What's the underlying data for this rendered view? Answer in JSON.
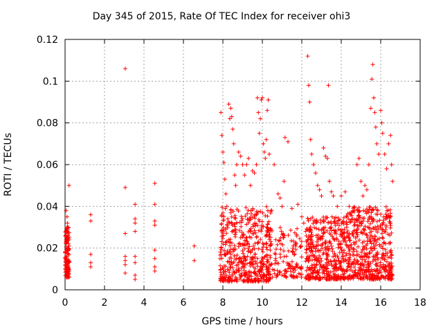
{
  "chart_data": {
    "type": "scatter",
    "title": "Day 345 of 2015, Rate Of TEC Index for receiver ohi3",
    "xlabel": "GPS time / hours",
    "ylabel": "ROTI / TECUs",
    "xlim": [
      0,
      18
    ],
    "ylim": [
      0,
      0.12
    ],
    "x_ticks": [
      "0",
      "2",
      "4",
      "6",
      "8",
      "10",
      "12",
      "14",
      "16",
      "18"
    ],
    "y_ticks": [
      "0",
      "0.02",
      "0.04",
      "0.06",
      "0.08",
      "0.1",
      "0.12"
    ],
    "grid": true,
    "marker": "+",
    "color": "#ff0000",
    "series": [
      {
        "points": [
          [
            0.02,
            0.012
          ],
          [
            0.04,
            0.018
          ],
          [
            0.06,
            0.024
          ],
          [
            0.08,
            0.016
          ],
          [
            0.1,
            0.03
          ],
          [
            0.12,
            0.02
          ],
          [
            0.14,
            0.026
          ],
          [
            0.16,
            0.014
          ],
          [
            0.18,
            0.022
          ],
          [
            0.2,
            0.05
          ],
          [
            0.05,
            0.038
          ],
          [
            0.1,
            0.035
          ],
          [
            0.15,
            0.01
          ],
          [
            0.08,
            0.009
          ],
          [
            0.12,
            0.032
          ],
          [
            0.03,
            0.028
          ],
          [
            1.3,
            0.036
          ],
          [
            1.3,
            0.033
          ],
          [
            1.3,
            0.017
          ],
          [
            1.3,
            0.013
          ],
          [
            1.3,
            0.011
          ],
          [
            3.05,
            0.106
          ],
          [
            3.05,
            0.049
          ],
          [
            3.05,
            0.027
          ],
          [
            3.05,
            0.016
          ],
          [
            3.05,
            0.014
          ],
          [
            3.05,
            0.012
          ],
          [
            3.05,
            0.008
          ],
          [
            3.55,
            0.041
          ],
          [
            3.55,
            0.034
          ],
          [
            3.55,
            0.032
          ],
          [
            3.55,
            0.028
          ],
          [
            3.55,
            0.016
          ],
          [
            3.55,
            0.013
          ],
          [
            3.55,
            0.007
          ],
          [
            3.55,
            0.005
          ],
          [
            4.55,
            0.051
          ],
          [
            4.55,
            0.041
          ],
          [
            4.55,
            0.033
          ],
          [
            4.55,
            0.031
          ],
          [
            4.55,
            0.019
          ],
          [
            4.55,
            0.015
          ],
          [
            4.55,
            0.011
          ],
          [
            4.55,
            0.009
          ],
          [
            6.55,
            0.021
          ],
          [
            6.55,
            0.014
          ],
          [
            7.9,
            0.085
          ],
          [
            7.95,
            0.074
          ],
          [
            8.0,
            0.066
          ],
          [
            8.05,
            0.061
          ],
          [
            8.1,
            0.053
          ],
          [
            8.15,
            0.046
          ],
          [
            8.2,
            0.04
          ],
          [
            8.25,
            0.034
          ],
          [
            8.3,
            0.089
          ],
          [
            8.35,
            0.082
          ],
          [
            8.4,
            0.087
          ],
          [
            8.45,
            0.083
          ],
          [
            8.5,
            0.077
          ],
          [
            8.55,
            0.07
          ],
          [
            8.6,
            0.055
          ],
          [
            8.65,
            0.05
          ],
          [
            8.7,
            0.06
          ],
          [
            8.8,
            0.066
          ],
          [
            8.9,
            0.064
          ],
          [
            9.0,
            0.06
          ],
          [
            9.1,
            0.055
          ],
          [
            9.2,
            0.06
          ],
          [
            9.3,
            0.063
          ],
          [
            9.4,
            0.05
          ],
          [
            9.5,
            0.057
          ],
          [
            9.6,
            0.056
          ],
          [
            9.7,
            0.06
          ],
          [
            9.75,
            0.092
          ],
          [
            9.8,
            0.085
          ],
          [
            9.85,
            0.075
          ],
          [
            9.9,
            0.082
          ],
          [
            9.95,
            0.091
          ],
          [
            10.0,
            0.092
          ],
          [
            10.05,
            0.07
          ],
          [
            10.1,
            0.066
          ],
          [
            10.15,
            0.063
          ],
          [
            10.2,
            0.072
          ],
          [
            10.25,
            0.086
          ],
          [
            10.3,
            0.091
          ],
          [
            10.35,
            0.065
          ],
          [
            10.6,
            0.06
          ],
          [
            10.8,
            0.046
          ],
          [
            10.9,
            0.044
          ],
          [
            11.0,
            0.04
          ],
          [
            11.1,
            0.052
          ],
          [
            11.15,
            0.073
          ],
          [
            11.3,
            0.071
          ],
          [
            11.5,
            0.039
          ],
          [
            11.8,
            0.041
          ],
          [
            12.0,
            0.035
          ],
          [
            12.1,
            0.032
          ],
          [
            12.2,
            0.028
          ],
          [
            12.3,
            0.112
          ],
          [
            12.35,
            0.098
          ],
          [
            12.4,
            0.09
          ],
          [
            12.45,
            0.072
          ],
          [
            12.5,
            0.065
          ],
          [
            12.6,
            0.06
          ],
          [
            12.7,
            0.056
          ],
          [
            12.8,
            0.05
          ],
          [
            12.9,
            0.048
          ],
          [
            13.0,
            0.045
          ],
          [
            13.1,
            0.068
          ],
          [
            13.2,
            0.064
          ],
          [
            13.3,
            0.063
          ],
          [
            13.35,
            0.098
          ],
          [
            13.4,
            0.052
          ],
          [
            13.5,
            0.047
          ],
          [
            13.6,
            0.045
          ],
          [
            13.8,
            0.04
          ],
          [
            14.0,
            0.045
          ],
          [
            14.2,
            0.047
          ],
          [
            14.4,
            0.04
          ],
          [
            14.6,
            0.038
          ],
          [
            14.8,
            0.06
          ],
          [
            14.9,
            0.063
          ],
          [
            15.0,
            0.052
          ],
          [
            15.1,
            0.045
          ],
          [
            15.2,
            0.05
          ],
          [
            15.3,
            0.048
          ],
          [
            15.4,
            0.06
          ],
          [
            15.5,
            0.087
          ],
          [
            15.55,
            0.101
          ],
          [
            15.6,
            0.108
          ],
          [
            15.65,
            0.092
          ],
          [
            15.7,
            0.085
          ],
          [
            15.75,
            0.078
          ],
          [
            15.8,
            0.07
          ],
          [
            15.9,
            0.065
          ],
          [
            16.0,
            0.086
          ],
          [
            16.05,
            0.08
          ],
          [
            16.1,
            0.075
          ],
          [
            16.2,
            0.065
          ],
          [
            16.3,
            0.058
          ],
          [
            16.4,
            0.07
          ],
          [
            16.5,
            0.074
          ],
          [
            16.55,
            0.06
          ],
          [
            16.6,
            0.052
          ]
        ]
      }
    ]
  }
}
